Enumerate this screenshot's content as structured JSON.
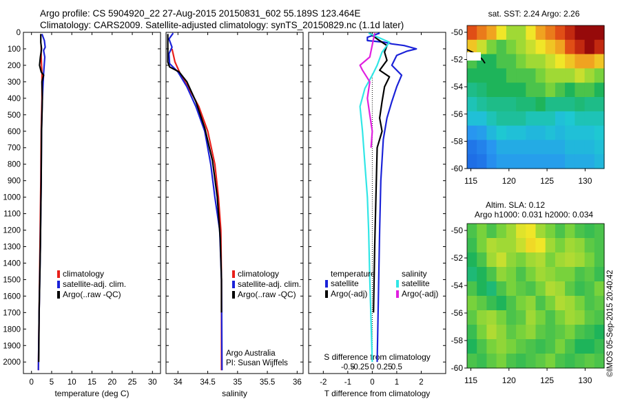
{
  "header": {
    "line1": "Argo profile: CS 5904920_22 27-Aug-2015 20150831_602 55.189S 123.464E",
    "line2": "Climatology: CARS2009. Satellite-adjusted climatology: synTS_20150829.nc (1.1d later)"
  },
  "side_stamp": "©IMOS 05-Sep-2015 20:40:42",
  "colors": {
    "climatology": "#e8201a",
    "satellite": "#1a22d8",
    "argo": "#000000",
    "sal_satellite": "#30e6e6",
    "sal_argo": "#e020e0"
  },
  "chart_data": [
    {
      "id": "temperature",
      "type": "line",
      "xlabel": "temperature (deg C)",
      "xlim": [
        -2,
        32
      ],
      "xticks": [
        0,
        5,
        10,
        15,
        20,
        25,
        30
      ],
      "ylim": [
        0,
        2070
      ],
      "yticks": [
        0,
        100,
        200,
        300,
        400,
        500,
        600,
        700,
        800,
        900,
        1000,
        1100,
        1200,
        1300,
        1400,
        1500,
        1600,
        1700,
        1800,
        1900,
        2000
      ],
      "legend": [
        "climatology",
        "satellite-adj. clim.",
        "Argo(..raw -QC)"
      ],
      "series": [
        {
          "name": "climatology",
          "color": "climatology",
          "points": [
            [
              2.4,
              80
            ],
            [
              2.4,
              150
            ],
            [
              2.6,
              250
            ],
            [
              2.6,
              400
            ],
            [
              2.4,
              600
            ],
            [
              2.3,
              900
            ],
            [
              2.1,
              1300
            ],
            [
              1.9,
              1700
            ],
            [
              1.7,
              2050
            ]
          ]
        },
        {
          "name": "satellite-adj. clim.",
          "color": "satellite",
          "points": [
            [
              2.6,
              10
            ],
            [
              3.2,
              50
            ],
            [
              3.4,
              90
            ],
            [
              3.0,
              110
            ],
            [
              3.3,
              150
            ],
            [
              3.0,
              250
            ],
            [
              2.7,
              400
            ],
            [
              2.5,
              600
            ],
            [
              2.4,
              900
            ],
            [
              2.2,
              1300
            ],
            [
              1.9,
              1700
            ],
            [
              1.7,
              2050
            ]
          ]
        },
        {
          "name": "Argo(..raw -QC)",
          "color": "argo",
          "points": [
            [
              2.3,
              10
            ],
            [
              2.3,
              60
            ],
            [
              2.5,
              100
            ],
            [
              2.2,
              150
            ],
            [
              2.0,
              200
            ],
            [
              2.4,
              240
            ],
            [
              3.0,
              260
            ],
            [
              2.6,
              300
            ],
            [
              2.7,
              400
            ],
            [
              2.5,
              600
            ],
            [
              2.4,
              900
            ],
            [
              2.2,
              1300
            ],
            [
              1.9,
              1700
            ],
            [
              1.8,
              2000
            ]
          ]
        }
      ]
    },
    {
      "id": "salinity",
      "type": "line",
      "xlabel": "salinity",
      "xlim": [
        33.8,
        36.1
      ],
      "xticks": [
        34,
        34.5,
        35,
        35.5,
        36
      ],
      "ylim": [
        0,
        2070
      ],
      "legend": [
        "climatology",
        "satellite-adj. clim.",
        "Argo(..raw -QC)"
      ],
      "annotation": [
        "Argo Australia",
        "PI: Susan Wijffels"
      ],
      "series": [
        {
          "name": "climatology",
          "color": "climatology",
          "points": [
            [
              33.9,
              100
            ],
            [
              33.95,
              180
            ],
            [
              34.05,
              260
            ],
            [
              34.2,
              350
            ],
            [
              34.35,
              450
            ],
            [
              34.5,
              600
            ],
            [
              34.62,
              800
            ],
            [
              34.68,
              1000
            ],
            [
              34.72,
              1200
            ],
            [
              34.73,
              1500
            ],
            [
              34.73,
              2050
            ]
          ]
        },
        {
          "name": "satellite-adj. clim.",
          "color": "satellite",
          "points": [
            [
              33.92,
              5
            ],
            [
              33.85,
              40
            ],
            [
              33.9,
              90
            ],
            [
              33.85,
              130
            ],
            [
              33.86,
              190
            ],
            [
              34.0,
              240
            ],
            [
              34.15,
              330
            ],
            [
              34.3,
              450
            ],
            [
              34.45,
              600
            ],
            [
              34.55,
              800
            ],
            [
              34.62,
              1000
            ],
            [
              34.7,
              1200
            ],
            [
              34.73,
              1500
            ],
            [
              34.74,
              2050
            ]
          ]
        },
        {
          "name": "Argo(..raw -QC)",
          "color": "argo",
          "points": [
            [
              33.83,
              10
            ],
            [
              33.83,
              180
            ],
            [
              33.86,
              210
            ],
            [
              34.02,
              240
            ],
            [
              34.15,
              300
            ],
            [
              34.3,
              420
            ],
            [
              34.45,
              580
            ],
            [
              34.58,
              780
            ],
            [
              34.66,
              1000
            ],
            [
              34.71,
              1250
            ],
            [
              34.73,
              1500
            ],
            [
              34.73,
              1700
            ]
          ]
        }
      ]
    },
    {
      "id": "difference",
      "type": "line",
      "xlabel": "T difference from climatology",
      "xlabel2": "S difference from climatology",
      "xlim": [
        -2.6,
        3.0
      ],
      "xticks": [
        -2,
        -1,
        0,
        1,
        2
      ],
      "sticks": [
        {
          "v": -1,
          "label": "-0.5"
        },
        {
          "v": -0.5,
          "label": "-0.25"
        },
        {
          "v": 0,
          "label": "0"
        },
        {
          "v": 0.5,
          "label": "0.25"
        },
        {
          "v": 1,
          "label": "0.5"
        }
      ],
      "ylim": [
        0,
        2070
      ],
      "legend_temp_title": "temperature",
      "legend_sal_title": "salinity",
      "legend_temp": [
        "satellite",
        "Argo(-adj)"
      ],
      "legend_sal": [
        "satellite",
        "Argo(-adj)"
      ],
      "series": [
        {
          "name": "satellite",
          "color": "satellite",
          "points": [
            [
              0.3,
              5
            ],
            [
              -0.2,
              30
            ],
            [
              -0.2,
              50
            ],
            [
              0.5,
              60
            ],
            [
              0.8,
              70
            ],
            [
              1.3,
              80
            ],
            [
              1.8,
              100
            ],
            [
              1.4,
              115
            ],
            [
              1.0,
              140
            ],
            [
              0.8,
              200
            ],
            [
              1.2,
              260
            ],
            [
              1.0,
              330
            ],
            [
              0.8,
              420
            ],
            [
              0.6,
              520
            ],
            [
              0.45,
              650
            ],
            [
              0.35,
              900
            ],
            [
              0.3,
              1200
            ],
            [
              0.25,
              1600
            ],
            [
              0.2,
              2000
            ]
          ]
        },
        {
          "name": "Argo(-adj)",
          "color": "argo",
          "points": [
            [
              -0.1,
              5
            ],
            [
              0.2,
              40
            ],
            [
              0.6,
              80
            ],
            [
              0.5,
              120
            ],
            [
              0.6,
              170
            ],
            [
              0.3,
              230
            ],
            [
              0.7,
              270
            ],
            [
              0.5,
              330
            ],
            [
              0.4,
              420
            ],
            [
              0.3,
              520
            ],
            [
              0.4,
              600
            ],
            [
              0.2,
              700
            ],
            [
              0.15,
              1000
            ],
            [
              0.1,
              1300
            ],
            [
              0.05,
              1700
            ]
          ]
        },
        {
          "name": "satellite S",
          "color": "sal_satellite",
          "points": [
            [
              -0.15,
              5
            ],
            [
              0.7,
              60
            ],
            [
              0.4,
              120
            ],
            [
              0.2,
              200
            ],
            [
              0.0,
              260
            ],
            [
              -0.3,
              340
            ],
            [
              -0.5,
              450
            ],
            [
              -0.4,
              600
            ],
            [
              -0.3,
              800
            ],
            [
              -0.2,
              1000
            ],
            [
              -0.15,
              1200
            ],
            [
              -0.1,
              1500
            ],
            [
              0.0,
              2000
            ]
          ]
        },
        {
          "name": "Argo(-adj) S",
          "color": "sal_argo",
          "points": [
            [
              0.1,
              5
            ],
            [
              -0.1,
              150
            ],
            [
              -0.5,
              200
            ],
            [
              -0.4,
              230
            ],
            [
              -0.1,
              300
            ],
            [
              -0.2,
              400
            ],
            [
              -0.1,
              500
            ],
            [
              0.0,
              600
            ],
            [
              -0.05,
              700
            ]
          ]
        }
      ]
    },
    {
      "id": "sst-map",
      "type": "heatmap",
      "title": "sat. SST: 2.24 Argo: 2.26",
      "xlim": [
        114.5,
        132.5
      ],
      "ylim": [
        -60,
        -49.5
      ],
      "xticks": [
        115,
        120,
        125,
        130
      ],
      "yticks": [
        -60,
        -58,
        -56,
        -54,
        -52,
        -50
      ],
      "rows": [
        [
          0.9,
          0.85,
          0.8,
          0.7,
          0.6,
          0.6,
          0.7,
          0.8,
          0.85,
          0.9,
          0.95,
          1.0,
          1.0,
          1.0
        ],
        [
          0.75,
          0.65,
          0.55,
          0.5,
          0.55,
          0.6,
          0.65,
          0.7,
          0.75,
          0.8,
          0.9,
          0.95,
          1.0,
          0.95
        ],
        [
          0.5,
          0.45,
          0.45,
          0.5,
          0.5,
          0.55,
          0.6,
          0.6,
          0.65,
          0.7,
          0.75,
          0.8,
          0.8,
          0.75
        ],
        [
          0.45,
          0.45,
          0.45,
          0.45,
          0.5,
          0.5,
          0.5,
          0.55,
          0.6,
          0.6,
          0.6,
          0.65,
          0.6,
          0.55
        ],
        [
          0.4,
          0.42,
          0.45,
          0.45,
          0.45,
          0.45,
          0.5,
          0.5,
          0.55,
          0.5,
          0.45,
          0.5,
          0.5,
          0.45
        ],
        [
          0.35,
          0.38,
          0.4,
          0.4,
          0.4,
          0.42,
          0.42,
          0.45,
          0.4,
          0.4,
          0.4,
          0.42,
          0.4,
          0.4
        ],
        [
          0.3,
          0.3,
          0.35,
          0.38,
          0.38,
          0.38,
          0.35,
          0.35,
          0.35,
          0.3,
          0.32,
          0.35,
          0.35,
          0.35
        ],
        [
          0.2,
          0.22,
          0.28,
          0.32,
          0.3,
          0.3,
          0.28,
          0.28,
          0.3,
          0.28,
          0.3,
          0.3,
          0.3,
          0.32
        ],
        [
          0.12,
          0.15,
          0.2,
          0.25,
          0.25,
          0.25,
          0.25,
          0.25,
          0.25,
          0.25,
          0.28,
          0.28,
          0.28,
          0.3
        ],
        [
          0.1,
          0.12,
          0.18,
          0.22,
          0.22,
          0.22,
          0.22,
          0.22,
          0.22,
          0.22,
          0.25,
          0.25,
          0.25,
          0.28
        ]
      ]
    },
    {
      "id": "sla-map",
      "type": "heatmap",
      "title": "Altim. SLA: 0.12",
      "title2": "Argo h1000: 0.031 h2000: 0.034",
      "xlim": [
        114.5,
        132.5
      ],
      "ylim": [
        -60,
        -49.5
      ],
      "xticks": [
        115,
        120,
        125,
        130
      ],
      "yticks": [
        -60,
        -58,
        -56,
        -54,
        -52,
        -50
      ],
      "rows": [
        [
          0.5,
          0.55,
          0.5,
          0.55,
          0.6,
          0.68,
          0.7,
          0.6,
          0.55,
          0.5,
          0.55,
          0.5,
          0.48,
          0.5
        ],
        [
          0.48,
          0.55,
          0.62,
          0.6,
          0.6,
          0.65,
          0.72,
          0.7,
          0.6,
          0.55,
          0.6,
          0.58,
          0.52,
          0.5
        ],
        [
          0.45,
          0.5,
          0.6,
          0.65,
          0.58,
          0.55,
          0.6,
          0.62,
          0.55,
          0.6,
          0.62,
          0.6,
          0.55,
          0.5
        ],
        [
          0.42,
          0.45,
          0.5,
          0.58,
          0.55,
          0.5,
          0.55,
          0.6,
          0.58,
          0.55,
          0.55,
          0.5,
          0.52,
          0.48
        ],
        [
          0.5,
          0.45,
          0.42,
          0.5,
          0.55,
          0.52,
          0.5,
          0.55,
          0.62,
          0.6,
          0.52,
          0.48,
          0.5,
          0.55
        ],
        [
          0.55,
          0.52,
          0.48,
          0.45,
          0.5,
          0.55,
          0.58,
          0.5,
          0.55,
          0.62,
          0.6,
          0.55,
          0.5,
          0.52
        ],
        [
          0.52,
          0.58,
          0.6,
          0.55,
          0.5,
          0.52,
          0.6,
          0.55,
          0.5,
          0.55,
          0.6,
          0.58,
          0.52,
          0.5
        ],
        [
          0.48,
          0.55,
          0.62,
          0.58,
          0.52,
          0.55,
          0.58,
          0.52,
          0.5,
          0.52,
          0.55,
          0.5,
          0.48,
          0.45
        ],
        [
          0.45,
          0.5,
          0.55,
          0.58,
          0.55,
          0.52,
          0.5,
          0.48,
          0.5,
          0.55,
          0.5,
          0.45,
          0.45,
          0.48
        ],
        [
          0.5,
          0.48,
          0.52,
          0.55,
          0.5,
          0.48,
          0.5,
          0.52,
          0.55,
          0.5,
          0.48,
          0.5,
          0.52,
          0.5
        ]
      ]
    }
  ]
}
